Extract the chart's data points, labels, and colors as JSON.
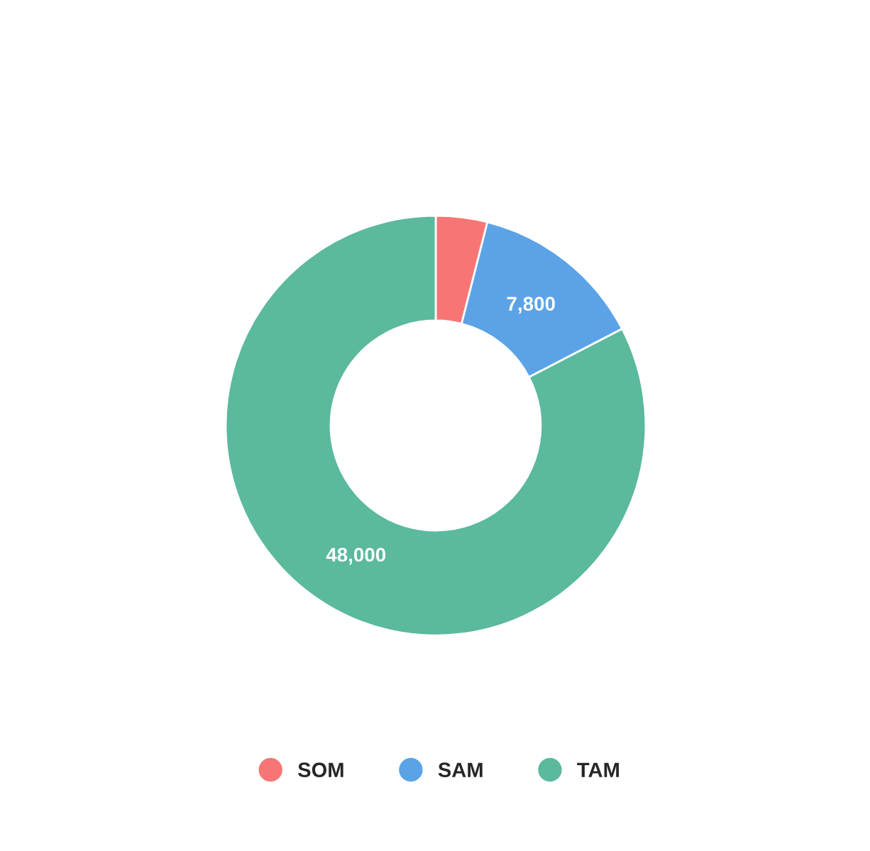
{
  "chart_data": {
    "type": "donut",
    "categories": [
      "SOM",
      "SAM",
      "TAM"
    ],
    "values": [
      2300,
      7800,
      48000
    ],
    "value_labels": [
      null,
      "7,800",
      "48,000"
    ],
    "colors": [
      "#f77574",
      "#5ba3e6",
      "#5bb99d"
    ],
    "legend": "bottom"
  }
}
